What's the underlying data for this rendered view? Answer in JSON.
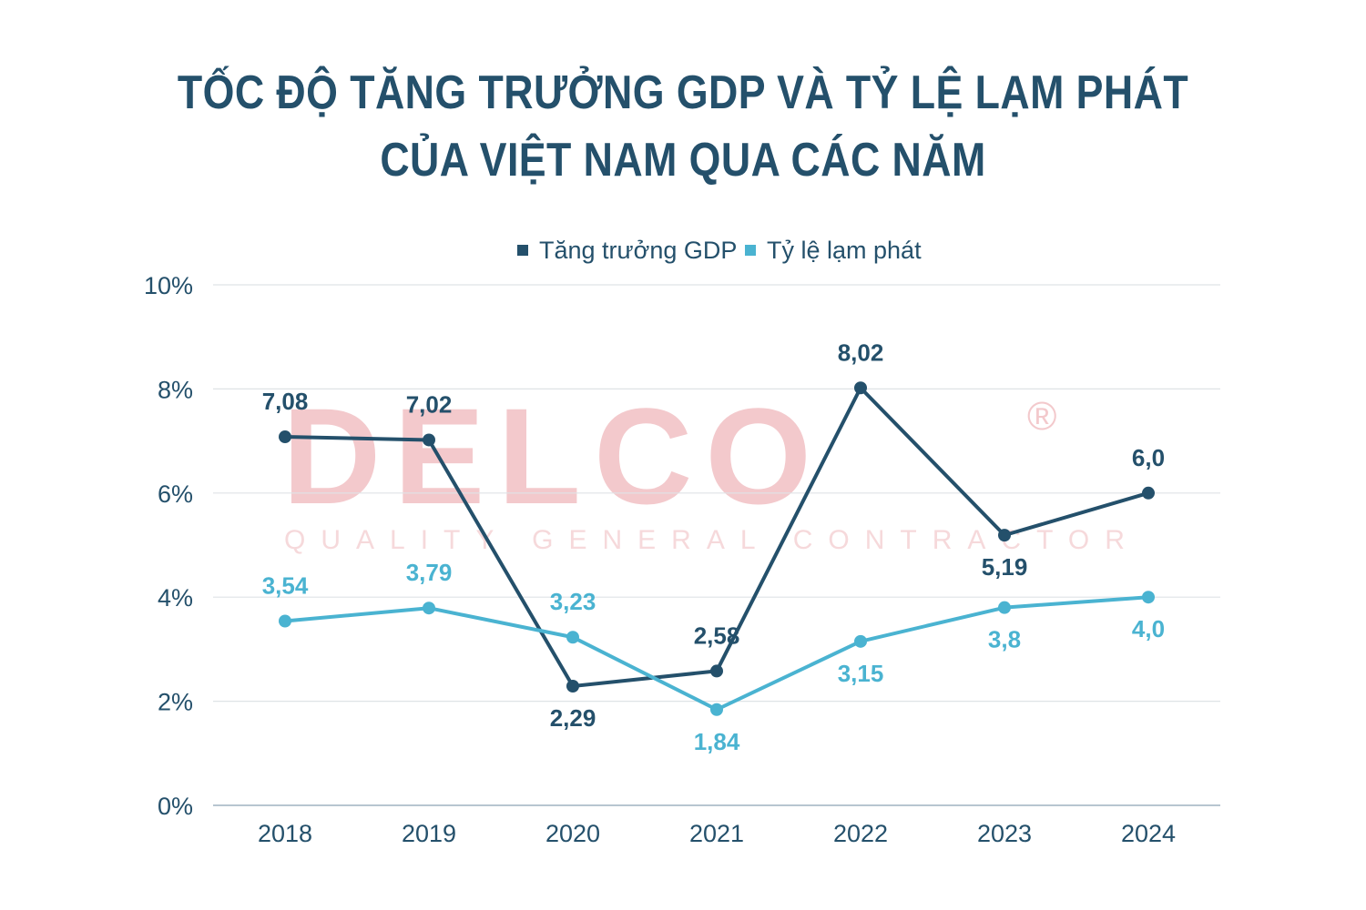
{
  "title": {
    "line1": "TỐC ĐỘ TĂNG TRƯỞNG GDP VÀ TỶ LỆ LẠM PHÁT",
    "line2": "CỦA VIỆT NAM QUA CÁC NĂM"
  },
  "watermark": {
    "brand": "DELCO",
    "registered": "®",
    "tagline": "QUALITY GENERAL CONTRACTOR"
  },
  "colors": {
    "gdp": "#24506b",
    "inflation": "#4ab3d1",
    "grid": "#dfe3e6",
    "axis": "#9fb3c0",
    "text": "#24506b"
  },
  "chart_data": {
    "type": "line",
    "title": "TỐC ĐỘ TĂNG TRƯỞNG GDP VÀ TỶ LỆ LẠM PHÁT CỦA VIỆT NAM QUA CÁC NĂM",
    "xlabel": "",
    "ylabel": "",
    "categories": [
      "2018",
      "2019",
      "2020",
      "2021",
      "2022",
      "2023",
      "2024"
    ],
    "ylim": [
      0,
      10
    ],
    "yticks": [
      0,
      2,
      4,
      6,
      8,
      10
    ],
    "ytick_labels": [
      "0%",
      "2%",
      "4%",
      "6%",
      "8%",
      "10%"
    ],
    "grid": true,
    "legend_position": "top-center",
    "series": [
      {
        "name": "Tăng trưởng GDP",
        "values": [
          7.08,
          7.02,
          2.29,
          2.58,
          8.02,
          5.19,
          6.0
        ],
        "labels": [
          "7,08",
          "7,02",
          "2,29",
          "2,58",
          "8,02",
          "5,19",
          "6,0"
        ],
        "label_side": [
          "above",
          "above",
          "below",
          "above",
          "above",
          "below",
          "above"
        ]
      },
      {
        "name": "Tỷ lệ lạm phát",
        "values": [
          3.54,
          3.79,
          3.23,
          1.84,
          3.15,
          3.8,
          4.0
        ],
        "labels": [
          "3,54",
          "3,79",
          "3,23",
          "1,84",
          "3,15",
          "3,8",
          "4,0"
        ],
        "label_side": [
          "above",
          "above",
          "above",
          "below",
          "below",
          "below",
          "below"
        ]
      }
    ]
  }
}
